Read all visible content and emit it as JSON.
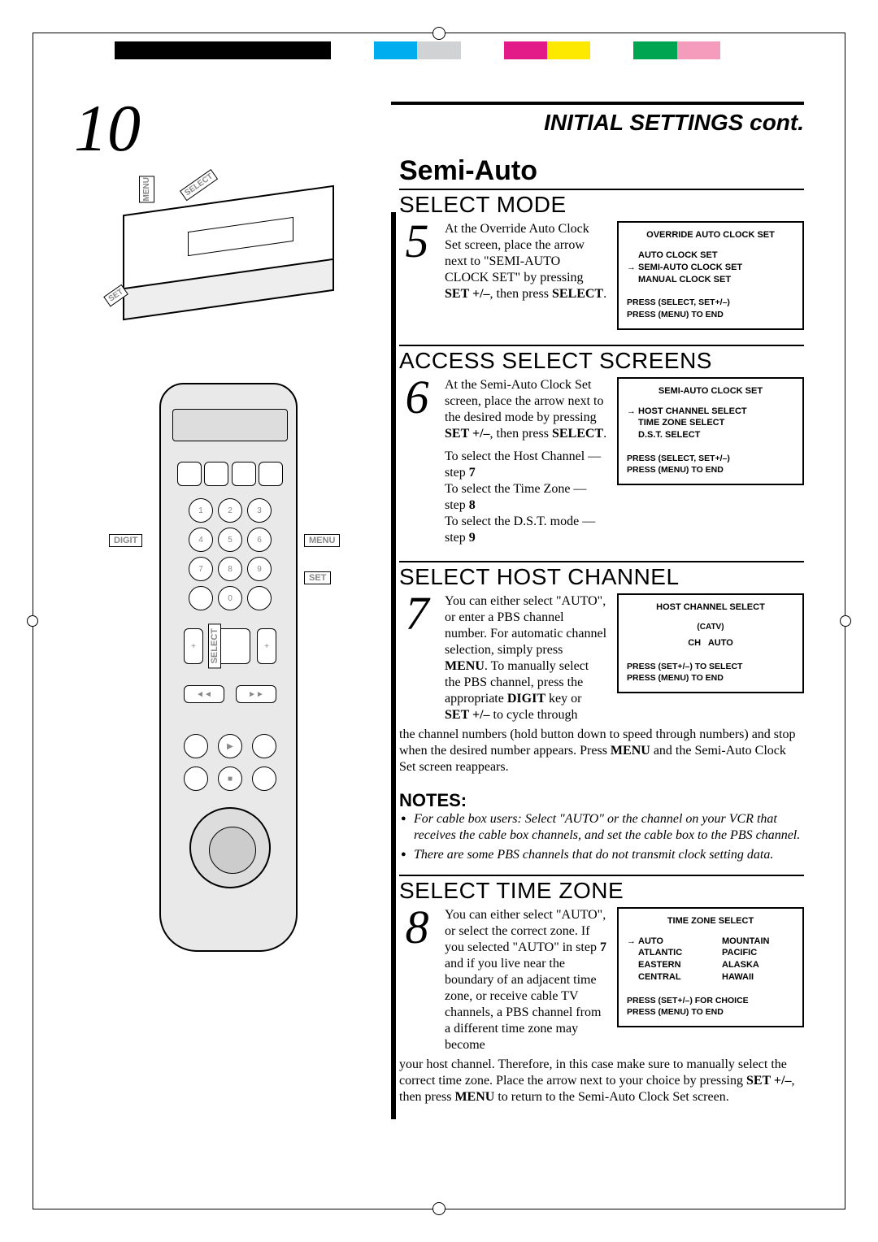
{
  "page_number": "10",
  "header": "INITIAL SETTINGS cont.",
  "subheader": "Semi-Auto",
  "colorbar": [
    "#000000",
    "#000000",
    "#000000",
    "#000000",
    "#000000",
    "#ffffff",
    "#00adee",
    "#d0d2d3",
    "#ffffff",
    "#e31b88",
    "#fde900",
    "#ffffff",
    "#00a551",
    "#f59bbb",
    "#ffffff"
  ],
  "vcr_labels": {
    "menu": "MENU",
    "select": "SELECT",
    "set": "SET"
  },
  "remote_labels": {
    "digit": "DIGIT",
    "menu": "MENU",
    "set": "SET",
    "select": "SELECT"
  },
  "sections": {
    "s5": {
      "num": "5",
      "title": "SELECT MODE",
      "text": "At the Override Auto Clock Set screen, place the arrow next to \"SEMI-AUTO CLOCK SET\" by pressing <b>SET +/–</b>, then press <b>SELECT</b>.",
      "osd": {
        "title": "OVERRIDE AUTO CLOCK SET",
        "opts": [
          "AUTO CLOCK SET",
          "SEMI-AUTO CLOCK SET",
          "MANUAL CLOCK SET"
        ],
        "sel": 1,
        "foot": [
          "PRESS (SELECT, SET+/–)",
          "PRESS (MENU) TO END"
        ]
      }
    },
    "s6": {
      "num": "6",
      "title": "ACCESS SELECT SCREENS",
      "text": "At the Semi-Auto Clock Set screen, place the arrow next to the desired mode by pressing <b>SET +/–</b>, then press <b>SELECT</b>.",
      "extra": [
        "To select the Host Channel — step <b>7</b>",
        "To select the Time Zone — step <b>8</b>",
        "To select the D.S.T. mode — step <b>9</b>"
      ],
      "osd": {
        "title": "SEMI-AUTO CLOCK SET",
        "opts": [
          "HOST CHANNEL SELECT",
          "TIME ZONE SELECT",
          "D.S.T. SELECT"
        ],
        "sel": 0,
        "foot": [
          "PRESS (SELECT, SET+/–)",
          "PRESS (MENU) TO END"
        ]
      }
    },
    "s7": {
      "num": "7",
      "title": "SELECT HOST CHANNEL",
      "text": "You can either select \"AUTO\", or enter a PBS channel number. For automatic channel selection, simply press <b>MENU</b>. To manually select the PBS channel, press the appropriate <b>DIGIT</b> key or <b>SET +/–</b> to cycle through",
      "text2": "the channel numbers (hold button down to speed through numbers) and stop when the desired number appears. Press <b>MENU</b> and the Semi-Auto Clock Set screen reappears.",
      "osd": {
        "title": "HOST CHANNEL SELECT",
        "sub": "(CATV)",
        "line": "CH   AUTO",
        "foot": [
          "PRESS (SET+/–)   TO SELECT",
          "PRESS (MENU) TO END"
        ]
      }
    },
    "s8": {
      "num": "8",
      "title": "SELECT TIME ZONE",
      "text": "You can either select \"AUTO\", or select the correct zone. If you selected \"AUTO\" in step <b>7</b> and if you live near the boundary of an adjacent time zone, or receive cable TV channels, a PBS channel from a different time zone may become",
      "text2": "your host channel. Therefore, in this case make sure to manually select the correct time zone. Place the arrow next to your choice by pressing <b>SET +/–</b>, then press <b>MENU</b> to return to the Semi-Auto Clock Set screen.",
      "osd": {
        "title": "TIME ZONE SELECT",
        "col1": [
          "AUTO",
          "ATLANTIC",
          "EASTERN",
          "CENTRAL"
        ],
        "col2": [
          "MOUNTAIN",
          "PACIFIC",
          "ALASKA",
          "HAWAII"
        ],
        "sel": 0,
        "foot": [
          "PRESS (SET+/–)   FOR CHOICE",
          "PRESS (MENU) TO END"
        ]
      }
    }
  },
  "notes_header": "NOTES:",
  "notes": [
    "For cable box users:  Select \"AUTO\" or the channel on your VCR that receives the cable box channels, and set the cable box to the PBS channel.",
    "There are some PBS channels that do not transmit clock setting data."
  ]
}
